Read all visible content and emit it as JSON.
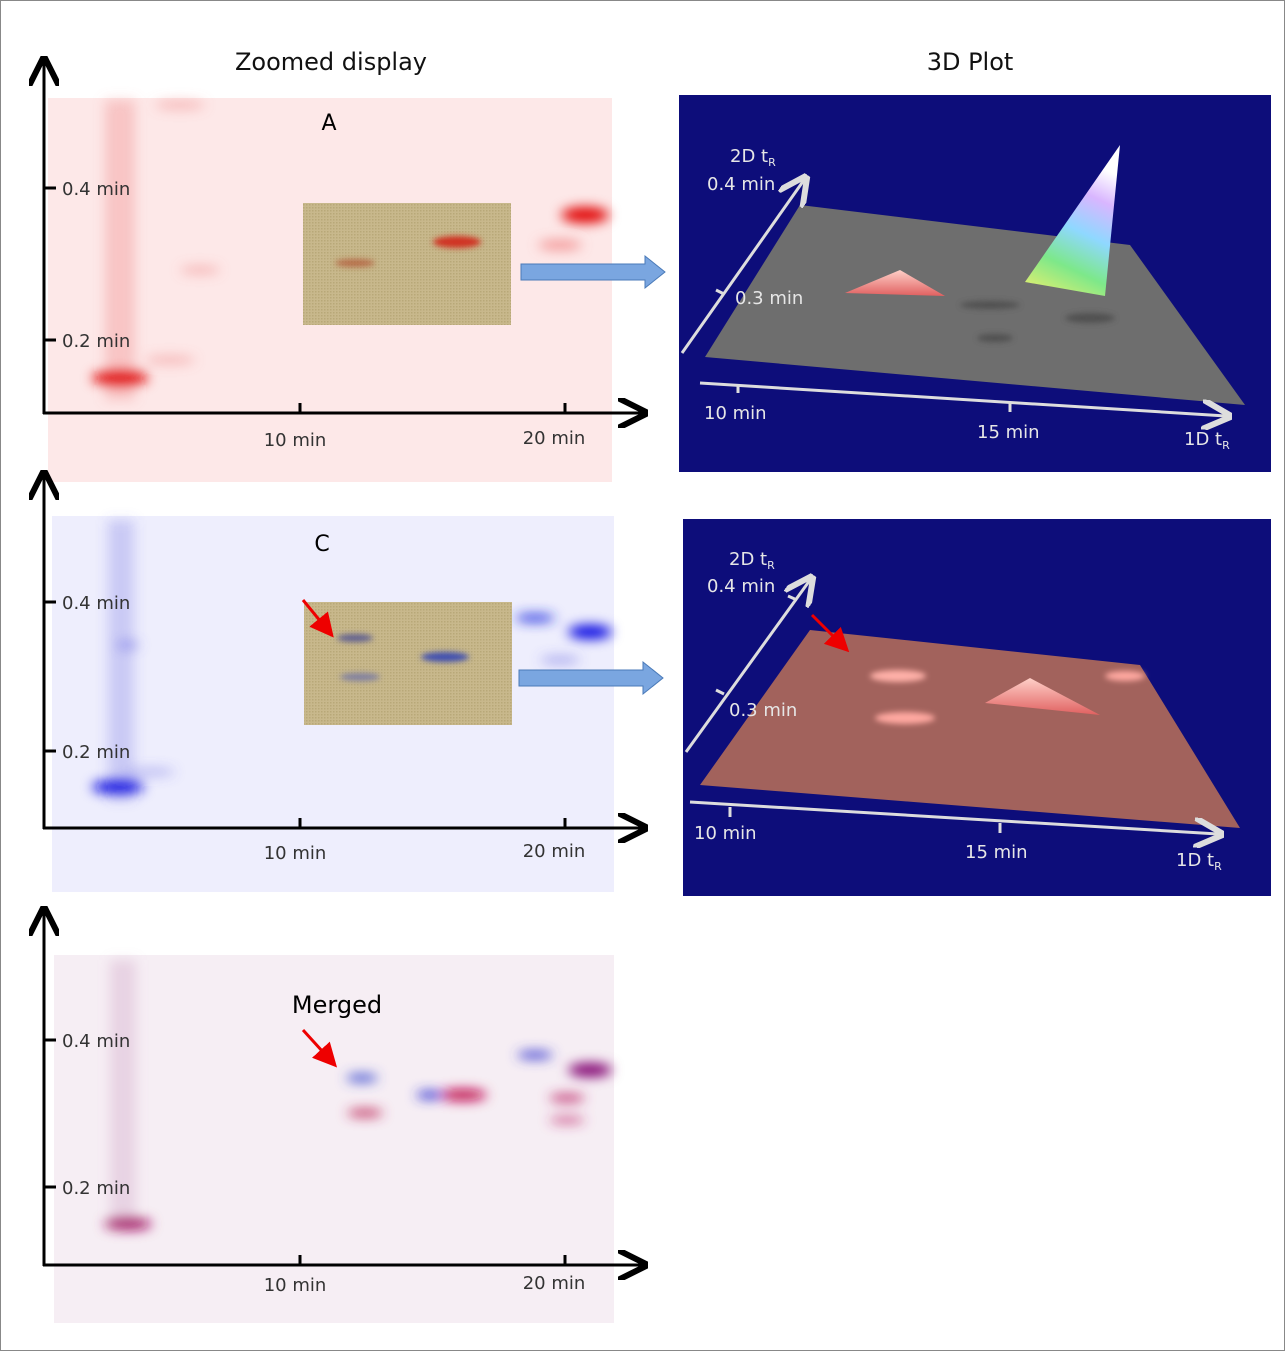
{
  "headings": {
    "left": "Zoomed display",
    "right": "3D Plot"
  },
  "panels": [
    {
      "label": "A",
      "y_ticks": [
        "0.4 min",
        "0.2 min"
      ],
      "x_ticks": [
        "10 min",
        "20 min"
      ]
    },
    {
      "label": "C",
      "y_ticks": [
        "0.4 min",
        "0.2 min"
      ],
      "x_ticks": [
        "10 min",
        "20 min"
      ]
    },
    {
      "label": "Merged",
      "y_ticks": [
        "0.4 min",
        "0.2 min"
      ],
      "x_ticks": [
        "10 min",
        "20 min"
      ]
    }
  ],
  "plots_3d": [
    {
      "y_axis": {
        "main": "2D t",
        "sub": "R"
      },
      "y_ticks": [
        "0.4 min",
        "0.3 min"
      ],
      "x_ticks": [
        "10 min",
        "15 min"
      ],
      "x_axis": {
        "main": "1D t",
        "sub": "R"
      }
    },
    {
      "y_axis": {
        "main": "2D t",
        "sub": "R"
      },
      "y_ticks": [
        "0.4 min",
        "0.3 min"
      ],
      "x_ticks": [
        "10 min",
        "15 min"
      ],
      "x_axis": {
        "main": "1D t",
        "sub": "R"
      }
    }
  ]
}
